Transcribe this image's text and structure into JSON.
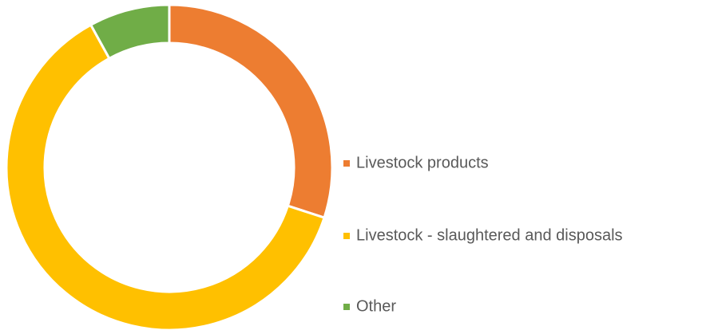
{
  "chart_data": {
    "type": "donut",
    "categories": [
      "Livestock products",
      "Livestock - slaughtered and disposals",
      "Other"
    ],
    "values": [
      30,
      62,
      8
    ],
    "colors": [
      "#ed7d31",
      "#ffc000",
      "#70ad47"
    ],
    "legend": "right"
  }
}
